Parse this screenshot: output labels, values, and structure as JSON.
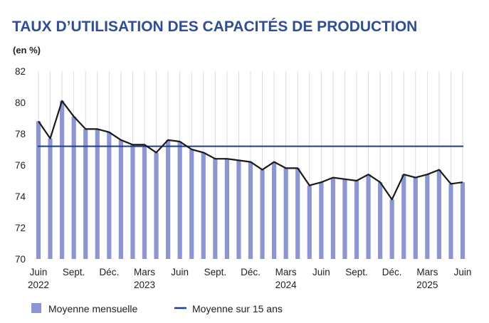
{
  "chart_data": {
    "type": "bar",
    "title": "TAUX D’UTILISATION DES CAPACITÉS DE PRODUCTION",
    "unit_label": "(en %)",
    "ylim": [
      70,
      82
    ],
    "yticks": [
      "70",
      "72",
      "74",
      "76",
      "78",
      "80",
      "82"
    ],
    "grid": "vertical",
    "legend_position": "bottom",
    "colors": {
      "title": "#2e4d9a",
      "bars": "#8c96d6",
      "line": "#1a1a1a",
      "average": "#1f3d8c",
      "grid": "#d4d4d4"
    },
    "categories": [
      "Juin 2022",
      "Juil. 2022",
      "Août 2022",
      "Sept. 2022",
      "Oct. 2022",
      "Nov. 2022",
      "Déc. 2022",
      "Janv. 2023",
      "Févr. 2023",
      "Mars 2023",
      "Avr. 2023",
      "Mai 2023",
      "Juin 2023",
      "Juil. 2023",
      "Août 2023",
      "Sept. 2023",
      "Oct. 2023",
      "Nov. 2023",
      "Déc. 2023",
      "Janv. 2024",
      "Févr. 2024",
      "Mars 2024",
      "Avr. 2024",
      "Mai 2024",
      "Juin 2024",
      "Juil. 2024",
      "Août 2024",
      "Sept. 2024",
      "Oct. 2024",
      "Nov. 2024",
      "Déc. 2024",
      "Janv. 2025",
      "Févr. 2025",
      "Mars 2025",
      "Avr. 2025",
      "Mai 2025",
      "Juin 2025"
    ],
    "xtick_labels": [
      {
        "index": 0,
        "lines": [
          "Juin",
          "2022"
        ]
      },
      {
        "index": 3,
        "lines": [
          "Sept."
        ]
      },
      {
        "index": 6,
        "lines": [
          "Déc."
        ]
      },
      {
        "index": 9,
        "lines": [
          "Mars",
          "2023"
        ]
      },
      {
        "index": 12,
        "lines": [
          "Juin"
        ]
      },
      {
        "index": 15,
        "lines": [
          "Sept."
        ]
      },
      {
        "index": 18,
        "lines": [
          "Déc."
        ]
      },
      {
        "index": 21,
        "lines": [
          "Mars",
          "2024"
        ]
      },
      {
        "index": 24,
        "lines": [
          "Juin"
        ]
      },
      {
        "index": 27,
        "lines": [
          "Sept."
        ]
      },
      {
        "index": 30,
        "lines": [
          "Déc."
        ]
      },
      {
        "index": 33,
        "lines": [
          "Mars",
          "2025"
        ]
      },
      {
        "index": 36,
        "lines": [
          "Juin"
        ]
      }
    ],
    "series": [
      {
        "name": "Moyenne mensuelle",
        "type": "bar+line",
        "values": [
          78.8,
          77.7,
          80.1,
          79.1,
          78.3,
          78.3,
          78.1,
          77.6,
          77.3,
          77.3,
          76.8,
          77.6,
          77.5,
          77.0,
          76.8,
          76.4,
          76.4,
          76.3,
          76.2,
          75.7,
          76.2,
          75.8,
          75.8,
          74.7,
          74.9,
          75.2,
          75.1,
          75.0,
          75.4,
          74.9,
          73.8,
          75.4,
          75.2,
          75.4,
          75.7,
          74.8,
          74.9
        ]
      },
      {
        "name": "Moyenne sur 15 ans",
        "type": "hline",
        "value": 77.2
      }
    ]
  }
}
